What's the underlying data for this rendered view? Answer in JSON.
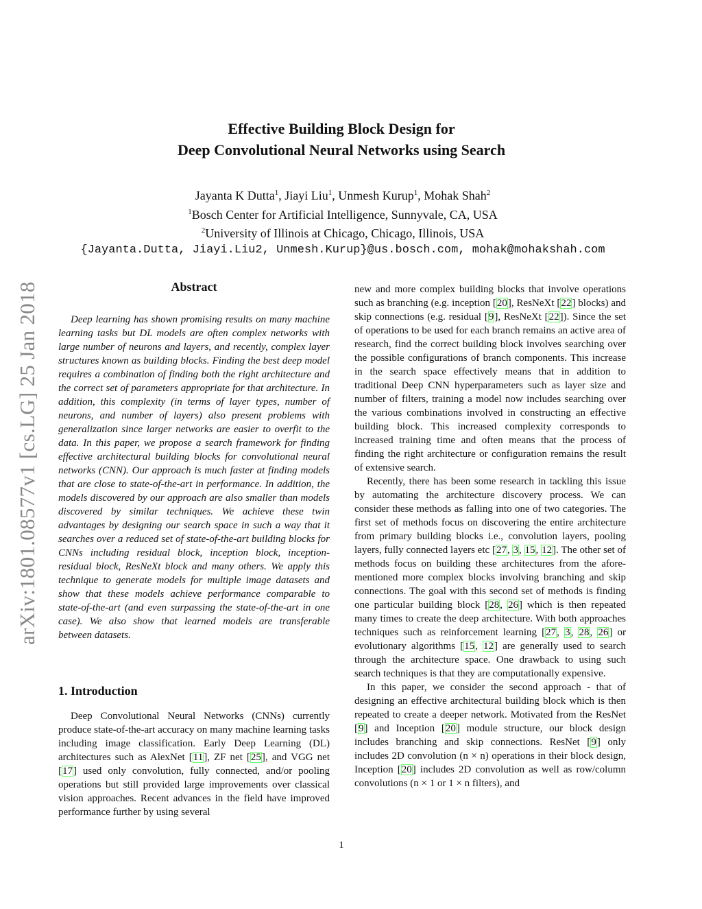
{
  "paper": {
    "title_line1": "Effective Building Block Design for",
    "title_line2": "Deep Convolutional Neural Networks using Search",
    "authors": [
      {
        "name": "Jayanta K Dutta",
        "aff": "1"
      },
      {
        "name": "Jiayi Liu",
        "aff": "1"
      },
      {
        "name": "Unmesh Kurup",
        "aff": "1"
      },
      {
        "name": "Mohak Shah",
        "aff": "2"
      }
    ],
    "affiliations": [
      {
        "num": "1",
        "text": "Bosch Center for Artificial Intelligence, Sunnyvale, CA, USA"
      },
      {
        "num": "2",
        "text": "University of Illinois at Chicago, Chicago, Illinois, USA"
      }
    ],
    "emails": "{Jayanta.Dutta, Jiayi.Liu2, Unmesh.Kurup}@us.bosch.com, mohak@mohakshah.com",
    "arxiv_stamp": "arXiv:1801.08577v1  [cs.LG]  25 Jan 2018",
    "abstract_heading": "Abstract",
    "abstract": "Deep learning has shown promising results on many machine learning tasks but DL models are often complex networks with large number of neurons and layers, and recently, complex layer structures known as building blocks. Finding the best deep model requires a combination of finding both the right architecture and the correct set of parameters appropriate for that architecture. In addition, this complexity (in terms of layer types, number of neurons, and number of layers) also present problems with generalization since larger networks are easier to overfit to the data. In this paper, we propose a search framework for finding effective architectural building blocks for convolutional neural networks (CNN). Our approach is much faster at finding models that are close to state-of-the-art in performance. In addition, the models discovered by our approach are also smaller than models discovered by similar techniques. We achieve these twin advantages by designing our search space in such a way that it searches over a reduced set of state-of-the-art building blocks for CNNs including residual block, inception block, inception-residual block, ResNeXt block and many others. We apply this technique to generate models for multiple image datasets and show that these models achieve performance comparable to state-of-the-art (and even surpassing the state-of-the-art in one case). We also show that learned models are transferable between datasets.",
    "intro_heading": "1. Introduction",
    "intro_left": "Deep Convolutional Neural Networks (CNNs) currently produce state-of-the-art accuracy on many machine learning tasks including image classification. Early Deep Learning (DL) architectures such as AlexNet [11], ZF net [25], and VGG net [17] used only convolution, fully connected, and/or pooling operations but still provided large improvements over classical vision approaches. Recent advances in the field have improved performance further by using several",
    "right_paragraphs": [
      "new and more complex building blocks that involve operations such as branching (e.g. inception [20], ResNeXt [22] blocks) and skip connections (e.g. residual [9], ResNeXt [22]). Since the set of operations to be used for each branch remains an active area of research, find the correct building block involves searching over the possible configurations of branch components. This increase in the search space effectively means that in addition to traditional Deep CNN hyperparameters such as layer size and number of filters, training a model now includes searching over the various combinations involved in constructing an effective building block. This increased complexity corresponds to increased training time and often means that the process of finding the right architecture or configuration remains the result of extensive search.",
      "Recently, there has been some research in tackling this issue by automating the architecture discovery process. We can consider these methods as falling into one of two categories. The first set of methods focus on discovering the entire architecture from primary building blocks i.e., convolution layers, pooling layers, fully connected layers etc [27, 3, 15, 12]. The other set of methods focus on building these architectures from the afore-mentioned more complex blocks involving branching and skip connections. The goal with this second set of methods is finding one particular building block [28, 26] which is then repeated many times to create the deep architecture. With both approaches techniques such as reinforcement learning [27, 3, 28, 26] or evolutionary algorithms [15, 12] are generally used to search through the architecture space. One drawback to using such search techniques is that they are computationally expensive.",
      "In this paper, we consider the second approach - that of designing an effective architectural building block which is then repeated to create a deeper network. Motivated from the ResNet [9] and Inception [20] module structure, our block design includes branching and skip connections. ResNet [9] only includes 2D convolution (n × n) operations in their block design, Inception [20] includes 2D convolution as well as row/column convolutions (n × 1 or 1 × n filters), and"
    ],
    "page_number": "1",
    "cite_color": "#66ff66"
  }
}
